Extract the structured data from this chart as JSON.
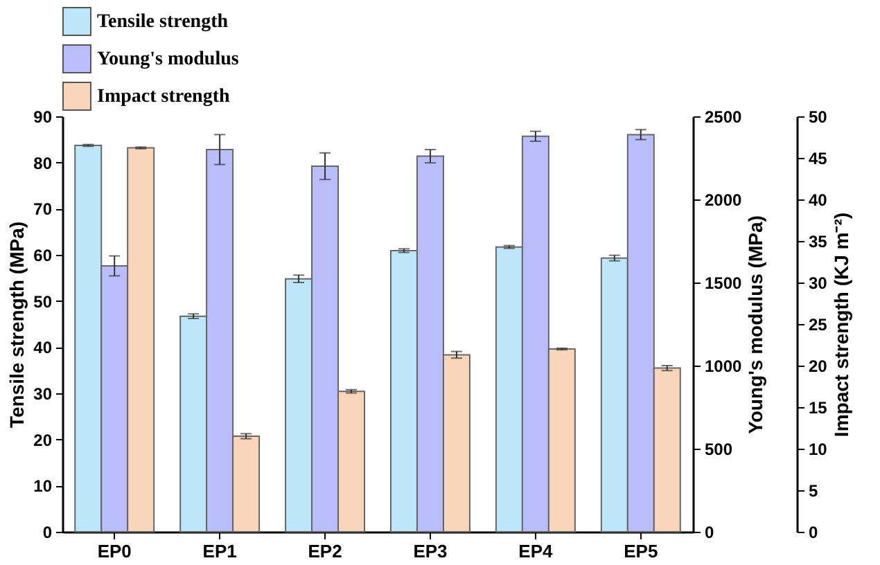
{
  "chart_data": {
    "type": "bar",
    "categories": [
      "EP0",
      "EP1",
      "EP2",
      "EP3",
      "EP4",
      "EP5"
    ],
    "series": [
      {
        "name": "Tensile strength",
        "color": "#bde6fb",
        "axis": "y",
        "values": [
          83.7,
          46.7,
          54.8,
          60.9,
          61.7,
          59.3
        ],
        "errors": [
          0.2,
          0.5,
          0.8,
          0.4,
          0.3,
          0.6
        ]
      },
      {
        "name": "Young's modulus",
        "color": "#b9bdfa",
        "axis": "y2",
        "values": [
          1600,
          2300,
          2200,
          2260,
          2380,
          2390
        ],
        "errors": [
          60,
          90,
          80,
          40,
          30,
          30
        ]
      },
      {
        "name": "Impact strength",
        "color": "#f9d6b9",
        "axis": "y3",
        "values": [
          46.2,
          11.5,
          16.9,
          21.3,
          22.0,
          19.7
        ],
        "errors": [
          0.1,
          0.3,
          0.2,
          0.4,
          0.1,
          0.3
        ]
      }
    ],
    "ylabel": "Tensile strength (MPa)",
    "ylim": [
      0,
      90
    ],
    "yticks": [
      0,
      10,
      20,
      30,
      40,
      50,
      60,
      70,
      80,
      90
    ],
    "y2label": "Young's modulus (MPa)",
    "y2lim": [
      0,
      2500
    ],
    "y2ticks": [
      0,
      500,
      1000,
      1500,
      2000,
      2500
    ],
    "y3label": "Impact strength (KJ m⁻²)",
    "y3lim": [
      0,
      50
    ],
    "y3ticks": [
      0,
      5,
      10,
      15,
      20,
      25,
      30,
      35,
      40,
      45,
      50
    ],
    "legend": "top",
    "grid": false
  }
}
